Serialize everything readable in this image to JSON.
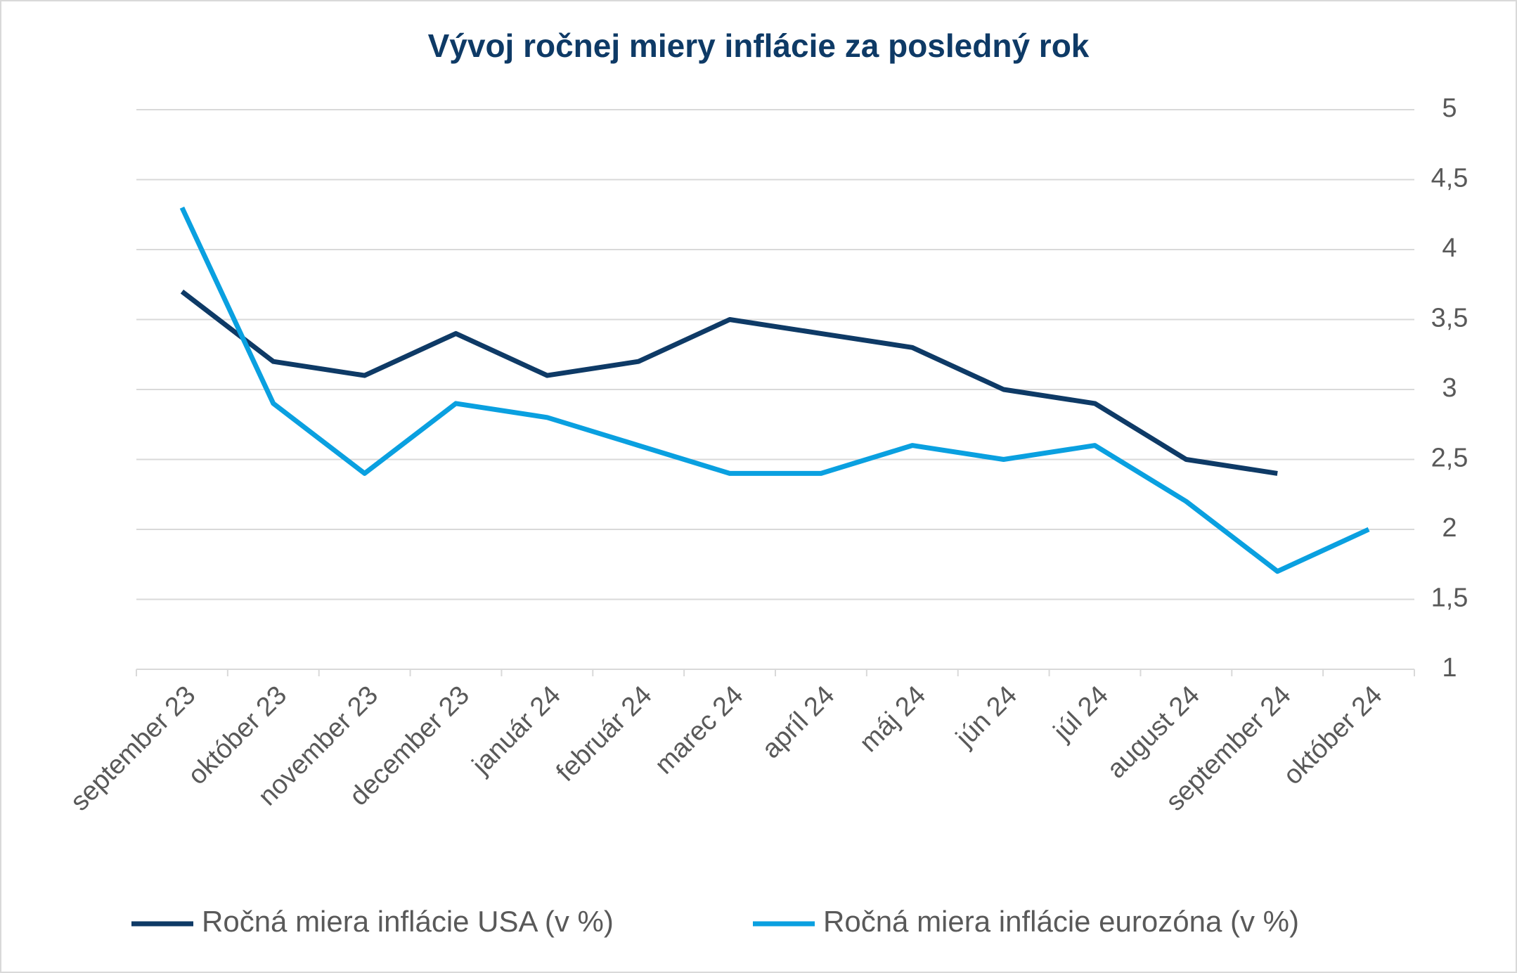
{
  "chart_data": {
    "type": "line",
    "title": "Vývoj ročnej miery inflácie za posledný rok",
    "categories": [
      "september 23",
      "október 23",
      "november 23",
      "december 23",
      "január 24",
      "február 24",
      "marec 24",
      "apríl 24",
      "máj 24",
      "jún 24",
      "júl 24",
      "august 24",
      "september 24",
      "október 24"
    ],
    "series": [
      {
        "name": "Ročná miera inflácie USA (v %)",
        "color": "#0e3a66",
        "values": [
          3.7,
          3.2,
          3.1,
          3.4,
          3.1,
          3.2,
          3.5,
          3.4,
          3.3,
          3.0,
          2.9,
          2.5,
          2.4,
          null
        ]
      },
      {
        "name": "Ročná miera inflácie eurozóna (v %)",
        "color": "#0aa0e0",
        "values": [
          4.3,
          2.9,
          2.4,
          2.9,
          2.8,
          2.6,
          2.4,
          2.4,
          2.6,
          2.5,
          2.6,
          2.2,
          1.7,
          2.0
        ]
      }
    ],
    "ylim": [
      1,
      5
    ],
    "yticks": [
      1,
      {
        "value": 1.5,
        "label": "1,5"
      },
      2,
      {
        "value": 2.5,
        "label": "2,5"
      },
      3,
      {
        "value": 3.5,
        "label": "3,5"
      },
      4,
      {
        "value": 4.5,
        "label": "4,5"
      },
      5
    ],
    "grid": true,
    "legend": "bottom"
  }
}
